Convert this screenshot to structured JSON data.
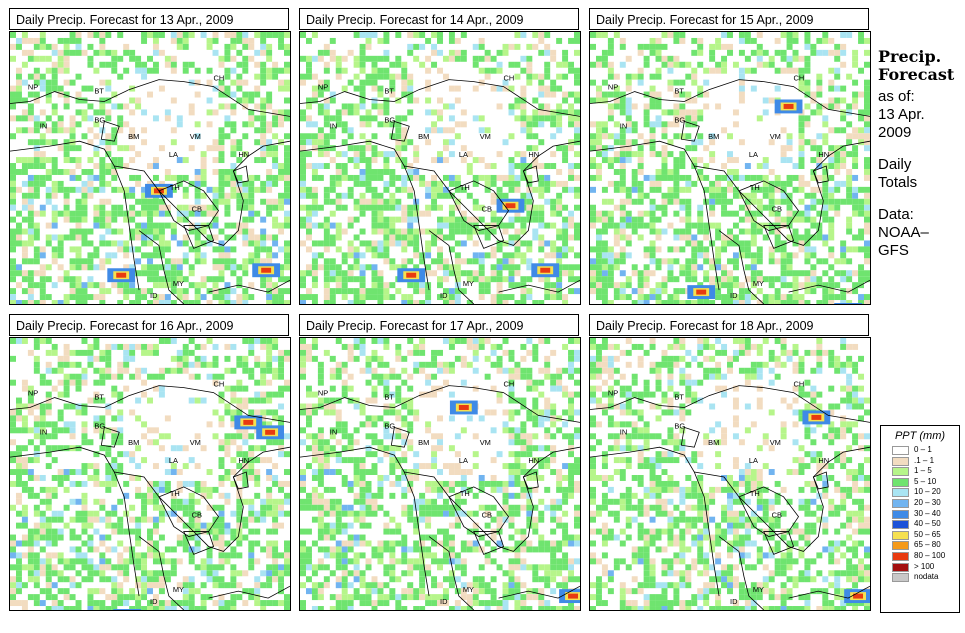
{
  "panels": [
    {
      "title": "Daily Precip. Forecast for  13 Apr., 2009"
    },
    {
      "title": "Daily Precip. Forecast for  14 Apr., 2009"
    },
    {
      "title": "Daily Precip. Forecast for  15 Apr., 2009"
    },
    {
      "title": "Daily Precip. Forecast for  16 Apr., 2009"
    },
    {
      "title": "Daily Precip. Forecast for  17 Apr., 2009"
    },
    {
      "title": "Daily Precip. Forecast for  18 Apr., 2009"
    }
  ],
  "country_labels": [
    "NP",
    "BT",
    "IN",
    "BG",
    "CH",
    "BM",
    "VM",
    "LA",
    "TH",
    "CB",
    "HN",
    "MY",
    "ID"
  ],
  "side": {
    "heading1": "Precip.",
    "heading2": "Forecast",
    "asof": "as of:",
    "date1": "13 Apr.",
    "date2": "2009",
    "daily1": "Daily",
    "daily2": "Totals",
    "data1": "Data:",
    "data2": "NOAA–",
    "data3": "GFS"
  },
  "legend": {
    "title": "PPT (mm)",
    "items": [
      {
        "label": "0 – 1",
        "color": "#ffffff"
      },
      {
        "label": ".1 – 1",
        "color": "#f2dcc0"
      },
      {
        "label": "1 – 5",
        "color": "#b6f58a"
      },
      {
        "label": "5 – 10",
        "color": "#6fe46f"
      },
      {
        "label": "10 – 20",
        "color": "#a9e4f2"
      },
      {
        "label": "20 – 30",
        "color": "#71b4f0"
      },
      {
        "label": "30 – 40",
        "color": "#3f8ae6"
      },
      {
        "label": "40 – 50",
        "color": "#1c52d8"
      },
      {
        "label": "50 – 65",
        "color": "#f6e050"
      },
      {
        "label": "65 – 80",
        "color": "#f59a1a"
      },
      {
        "label": "80 – 100",
        "color": "#e83a10"
      },
      {
        "label": "> 100",
        "color": "#a41010"
      },
      {
        "label": "nodata",
        "color": "#c8c8c8"
      }
    ]
  }
}
